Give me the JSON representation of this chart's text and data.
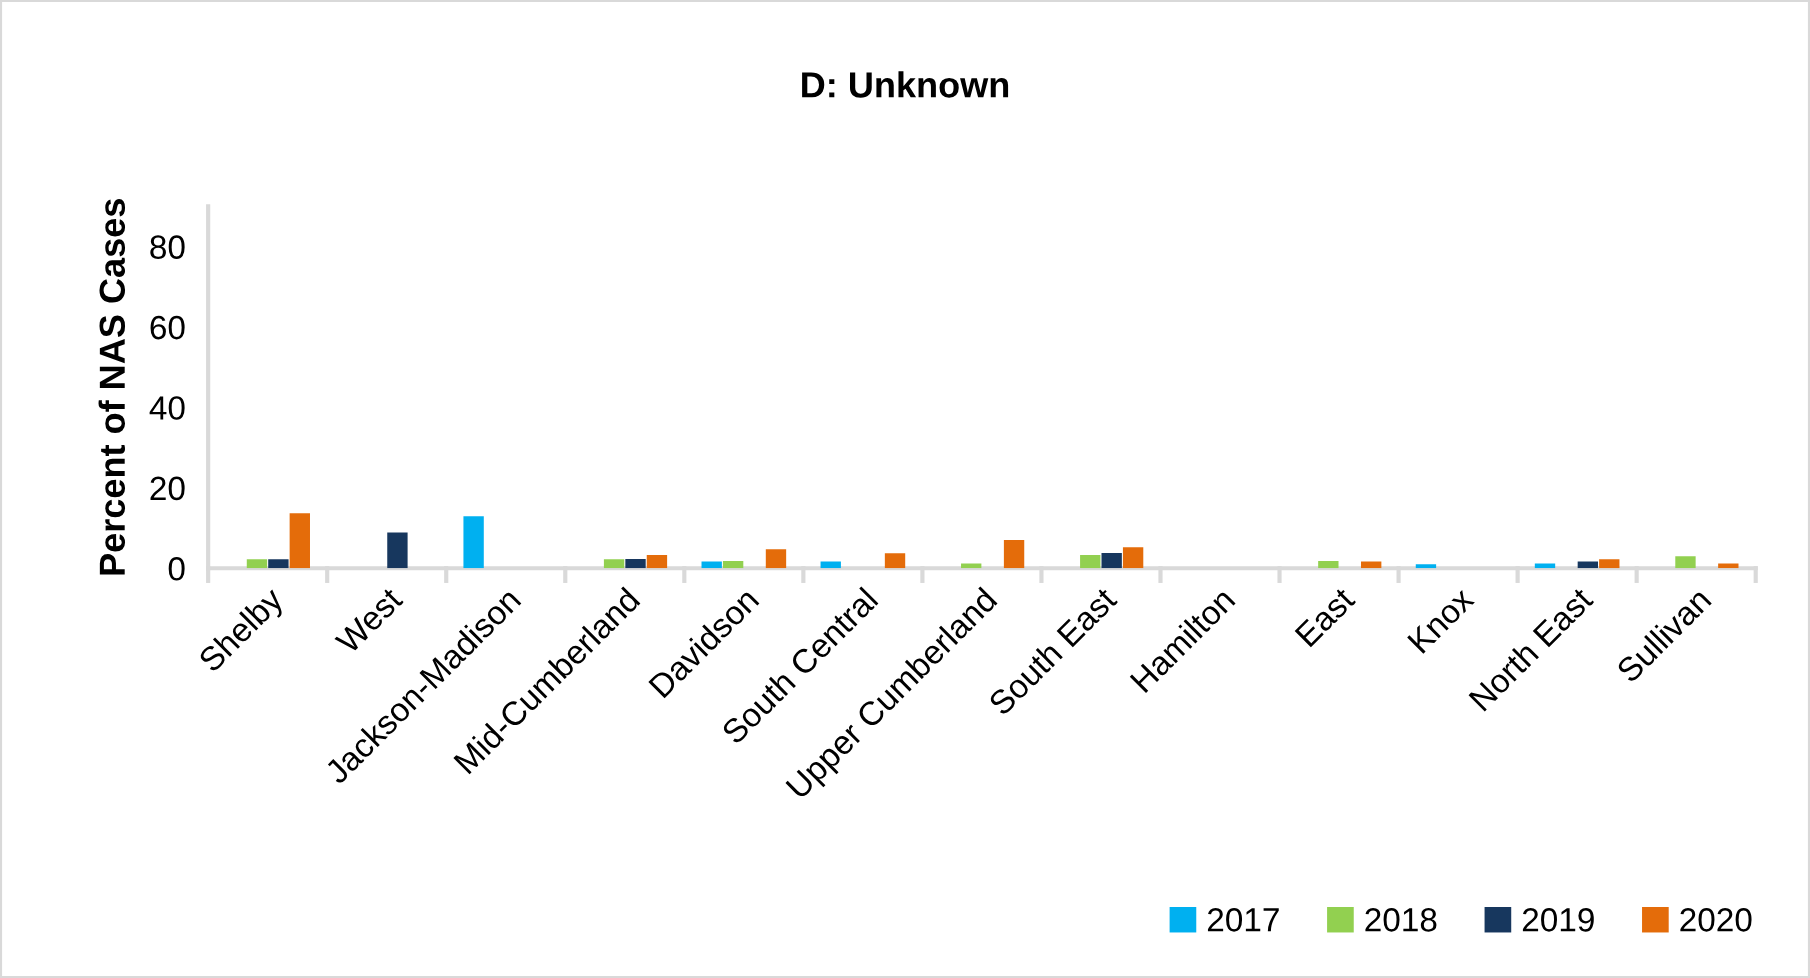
{
  "chart_data": {
    "type": "bar",
    "title": "D: Unknown",
    "ylabel": "Percent of NAS Cases",
    "categories": [
      "Shelby",
      "West",
      "Jackson-Madison",
      "Mid-Cumberland",
      "Davidson",
      "South Central",
      "Upper Cumberland",
      "South East",
      "Hamilton",
      "East",
      "Knox",
      "North East",
      "Sullivan"
    ],
    "series": [
      {
        "name": "2017",
        "color": "#00b0f0",
        "values": [
          null,
          null,
          12.9,
          null,
          1.7,
          1.7,
          null,
          null,
          null,
          null,
          1.0,
          1.2,
          null
        ]
      },
      {
        "name": "2018",
        "color": "#92d050",
        "values": [
          2.2,
          null,
          null,
          2.2,
          1.8,
          null,
          1.2,
          3.3,
          null,
          1.8,
          null,
          null,
          3.0
        ]
      },
      {
        "name": "2019",
        "color": "#17375e",
        "values": [
          2.2,
          8.9,
          null,
          2.3,
          null,
          null,
          null,
          3.8,
          null,
          null,
          null,
          1.7,
          null
        ]
      },
      {
        "name": "2020",
        "color": "#e46c0a",
        "values": [
          13.7,
          null,
          null,
          3.3,
          4.7,
          3.7,
          7.0,
          5.2,
          null,
          1.7,
          null,
          2.2,
          1.2
        ]
      }
    ],
    "ylim": [
      0,
      90
    ],
    "yticks": [
      0,
      20,
      40,
      60,
      80
    ],
    "grid": false,
    "legend": "bottom right"
  }
}
